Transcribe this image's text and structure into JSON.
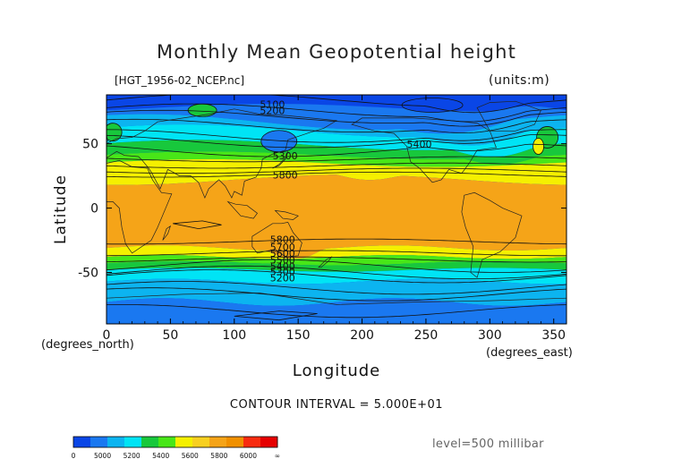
{
  "header": {
    "title": "Monthly Mean Geopotential height",
    "file_label": "[HGT_1956-02_NCEP.nc]",
    "units_label": "(units:m)"
  },
  "footer": {
    "contour_interval": "CONTOUR INTERVAL = 5.000E+01",
    "level": "level=500 millibar"
  },
  "axes_text": {
    "x_unit_note": "(degrees_east)",
    "y_unit_note": "(degrees_north)"
  },
  "chart_data": {
    "type": "heatmap",
    "title": "Monthly Mean Geopotential height",
    "xlabel": "Longitude",
    "ylabel": "Latitude",
    "xlim": [
      0,
      360
    ],
    "ylim": [
      -90,
      90
    ],
    "x_ticks": [
      0,
      50,
      100,
      150,
      200,
      250,
      300,
      350
    ],
    "y_ticks": [
      50,
      0,
      -50
    ],
    "contour_interval_m": 50,
    "contour_labels": [
      {
        "value": "5100",
        "lon": 120,
        "lat": 78
      },
      {
        "value": "5200",
        "lon": 120,
        "lat": 73
      },
      {
        "value": "5300",
        "lon": 130,
        "lat": 38
      },
      {
        "value": "5400",
        "lon": 235,
        "lat": 47
      },
      {
        "value": "5800",
        "lon": 130,
        "lat": 23
      },
      {
        "value": "5800",
        "lon": 128,
        "lat": -27
      },
      {
        "value": "5700",
        "lon": 128,
        "lat": -33
      },
      {
        "value": "5600",
        "lon": 128,
        "lat": -38
      },
      {
        "value": "5500",
        "lon": 128,
        "lat": -43
      },
      {
        "value": "5400",
        "lon": 128,
        "lat": -48
      },
      {
        "value": "5300",
        "lon": 128,
        "lat": -52
      },
      {
        "value": "5200",
        "lon": 128,
        "lat": -57
      }
    ],
    "colorbar": {
      "labels": [
        "0",
        "5000",
        "5200",
        "5400",
        "5600",
        "5800",
        "6000",
        "∞"
      ],
      "colors": [
        "#0a46e6",
        "#1a78f0",
        "#0cb4f0",
        "#00e4f5",
        "#18c83c",
        "#48e618",
        "#f5f000",
        "#f8d020",
        "#f5a418",
        "#f09000",
        "#f82c10",
        "#e60000"
      ]
    }
  }
}
